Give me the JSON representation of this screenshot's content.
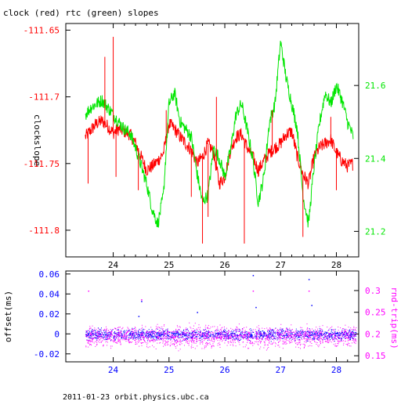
{
  "title": "clock (red) rtc (green) slopes",
  "footer": "2011-01-23 orbit.physics.ubc.ca",
  "colors": {
    "axis": "#000000",
    "red": "#ff0000",
    "green": "#00e600",
    "blue": "#0000ff",
    "magenta": "#ff00ff"
  },
  "chart_data": [
    {
      "type": "line",
      "title": "clock (red) rtc (green) slopes",
      "ylabel": "clockslope",
      "x_ticks": [
        "24",
        "25",
        "26",
        "27",
        "28"
      ],
      "xlim": [
        23.15,
        28.4
      ],
      "y_left": {
        "ylim": [
          -111.82,
          -111.645
        ],
        "ticks": [
          "-111.65",
          "-111.7",
          "-111.75",
          "-111.8"
        ],
        "tick_values": [
          -111.65,
          -111.7,
          -111.75,
          -111.8
        ]
      },
      "y_right": {
        "ylim": [
          21.13,
          21.77
        ],
        "ticks": [
          "21.6",
          "21.4",
          "21.2"
        ],
        "tick_values": [
          21.6,
          21.4,
          21.2
        ]
      },
      "series": [
        {
          "color": "red",
          "axis": "left",
          "x": [
            23.5,
            23.6,
            23.7,
            23.8,
            23.9,
            24.0,
            24.1,
            24.2,
            24.3,
            24.4,
            24.5,
            24.6,
            24.7,
            24.8,
            24.9,
            25.0,
            25.1,
            25.2,
            25.3,
            25.4,
            25.5,
            25.6,
            25.7,
            25.8,
            25.9,
            26.0,
            26.1,
            26.2,
            26.3,
            26.4,
            26.5,
            26.6,
            26.7,
            26.8,
            26.9,
            27.0,
            27.1,
            27.2,
            27.3,
            27.4,
            27.5,
            27.6,
            27.7,
            27.8,
            27.9,
            28.0,
            28.1,
            28.2,
            28.3
          ],
          "y": [
            -111.73,
            -111.725,
            -111.72,
            -111.718,
            -111.722,
            -111.727,
            -111.724,
            -111.726,
            -111.728,
            -111.735,
            -111.745,
            -111.755,
            -111.752,
            -111.748,
            -111.742,
            -111.72,
            -111.724,
            -111.73,
            -111.735,
            -111.74,
            -111.75,
            -111.745,
            -111.735,
            -111.742,
            -111.765,
            -111.76,
            -111.74,
            -111.73,
            -111.728,
            -111.738,
            -111.745,
            -111.755,
            -111.748,
            -111.742,
            -111.738,
            -111.735,
            -111.728,
            -111.726,
            -111.745,
            -111.758,
            -111.765,
            -111.745,
            -111.738,
            -111.735,
            -111.732,
            -111.742,
            -111.748,
            -111.752,
            -111.75
          ]
        },
        {
          "color": "green",
          "axis": "right",
          "x": [
            23.5,
            23.6,
            23.7,
            23.8,
            23.9,
            24.0,
            24.1,
            24.2,
            24.3,
            24.4,
            24.5,
            24.6,
            24.7,
            24.8,
            24.9,
            25.0,
            25.1,
            25.2,
            25.3,
            25.4,
            25.5,
            25.6,
            25.7,
            25.8,
            25.9,
            26.0,
            26.1,
            26.2,
            26.3,
            26.4,
            26.5,
            26.6,
            26.7,
            26.8,
            26.9,
            27.0,
            27.1,
            27.2,
            27.3,
            27.4,
            27.5,
            27.6,
            27.7,
            27.8,
            27.9,
            28.0,
            28.1,
            28.2,
            28.3
          ],
          "y": [
            21.52,
            21.54,
            21.55,
            21.56,
            21.54,
            21.52,
            21.5,
            21.48,
            21.47,
            21.43,
            21.38,
            21.33,
            21.26,
            21.22,
            21.3,
            21.55,
            21.58,
            21.5,
            21.48,
            21.46,
            21.36,
            21.28,
            21.3,
            21.43,
            21.4,
            21.35,
            21.42,
            21.52,
            21.55,
            21.48,
            21.4,
            21.28,
            21.35,
            21.5,
            21.55,
            21.72,
            21.62,
            21.55,
            21.48,
            21.3,
            21.22,
            21.38,
            21.5,
            21.58,
            21.55,
            21.6,
            21.56,
            21.5,
            21.46
          ]
        }
      ],
      "spikes_red": [
        {
          "x": 23.55,
          "y": -111.765
        },
        {
          "x": 23.85,
          "y": -111.67
        },
        {
          "x": 24.0,
          "y": -111.655
        },
        {
          "x": 24.05,
          "y": -111.76
        },
        {
          "x": 24.45,
          "y": -111.77
        },
        {
          "x": 24.95,
          "y": -111.71
        },
        {
          "x": 25.4,
          "y": -111.775
        },
        {
          "x": 25.6,
          "y": -111.81
        },
        {
          "x": 25.7,
          "y": -111.79
        },
        {
          "x": 25.85,
          "y": -111.7
        },
        {
          "x": 26.35,
          "y": -111.81
        },
        {
          "x": 26.6,
          "y": -111.76
        },
        {
          "x": 26.85,
          "y": -111.71
        },
        {
          "x": 27.4,
          "y": -111.805
        },
        {
          "x": 27.9,
          "y": -111.715
        },
        {
          "x": 28.0,
          "y": -111.77
        }
      ]
    },
    {
      "type": "scatter",
      "ylabel_left": "offset(ms)",
      "ylabel_right": "rnd-trip(ms)",
      "x_ticks": [
        "24",
        "25",
        "26",
        "27",
        "28"
      ],
      "xlim": [
        23.15,
        28.4
      ],
      "y_left": {
        "ylim": [
          -0.028,
          0.063
        ],
        "ticks": [
          "0.06",
          "0.04",
          "0.02",
          "0",
          "-0.02"
        ],
        "tick_values": [
          0.06,
          0.04,
          0.02,
          0,
          -0.02
        ]
      },
      "y_right": {
        "ylim": [
          0.136,
          0.345
        ],
        "ticks": [
          "0.3",
          "0.25",
          "0.2",
          "0.15"
        ],
        "tick_values": [
          0.3,
          0.25,
          0.2,
          0.15
        ]
      },
      "series": [
        {
          "color": "blue",
          "name": "offset",
          "x_range": [
            23.5,
            28.35
          ],
          "y_band": [
            -0.008,
            0.007
          ]
        },
        {
          "color": "magenta",
          "name": "rnd-trip",
          "x_range": [
            23.5,
            28.35
          ],
          "y_band": [
            0.16,
            0.23
          ]
        }
      ],
      "outliers_blue": [
        {
          "x": 24.45,
          "y": 0.018
        },
        {
          "x": 24.5,
          "y": 0.033
        },
        {
          "x": 25.5,
          "y": 0.022
        },
        {
          "x": 26.5,
          "y": 0.059
        },
        {
          "x": 26.55,
          "y": 0.027
        },
        {
          "x": 27.5,
          "y": 0.055
        },
        {
          "x": 27.55,
          "y": 0.029
        }
      ],
      "outliers_magenta": [
        {
          "x": 23.55,
          "y": 0.3
        },
        {
          "x": 24.5,
          "y": 0.28
        },
        {
          "x": 26.5,
          "y": 0.3
        },
        {
          "x": 27.5,
          "y": 0.3
        }
      ]
    }
  ]
}
